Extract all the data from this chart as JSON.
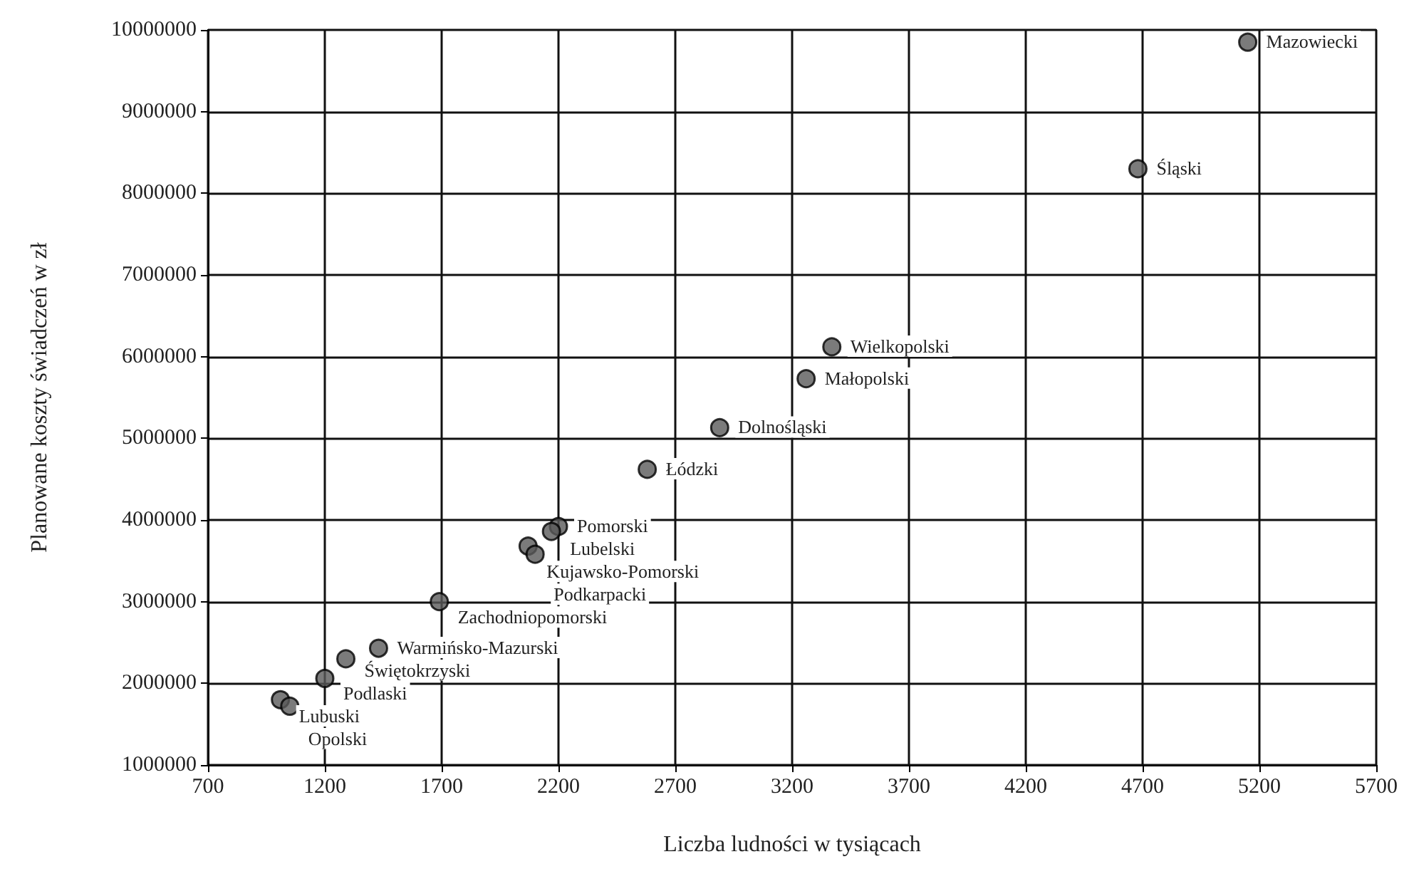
{
  "chart_data": {
    "type": "scatter",
    "xlabel": "Liczba ludności w tysiącach",
    "ylabel": "Planowane koszty świadczeń w zł",
    "x": [
      5150,
      4680,
      3370,
      3260,
      2890,
      2580,
      2200,
      2170,
      2070,
      2100,
      1690,
      1430,
      1290,
      1200,
      1010,
      1050
    ],
    "series": [
      {
        "color": "#5a5a5a",
        "values": [
          9850000,
          8300000,
          6120000,
          5730000,
          5130000,
          4620000,
          3920000,
          3860000,
          3680000,
          3580000,
          3000000,
          2430000,
          2300000,
          2060000,
          1800000,
          1720000
        ]
      }
    ],
    "annotations": [
      {
        "text": "Mazowiecki",
        "x": 5150,
        "y": 9850000
      },
      {
        "text": "Śląski",
        "x": 4680,
        "y": 8300000
      },
      {
        "text": "Wielkopolski",
        "x": 3370,
        "y": 6120000
      },
      {
        "text": "Małopolski",
        "x": 3260,
        "y": 5730000
      },
      {
        "text": "Dolnośląski",
        "x": 2890,
        "y": 5130000
      },
      {
        "text": "Łódzki",
        "x": 2580,
        "y": 4620000
      },
      {
        "text": "Pomorski",
        "x": 2200,
        "y": 3920000
      },
      {
        "text": "Lubelski",
        "x": 2170,
        "y": 3860000
      },
      {
        "text": "Kujawsko-Pomorski",
        "x": 2070,
        "y": 3680000
      },
      {
        "text": "Podkarpacki",
        "x": 2100,
        "y": 3580000
      },
      {
        "text": "Zachodniopomorski",
        "x": 1690,
        "y": 3000000
      },
      {
        "text": "Warmińsko-Mazurski",
        "x": 1430,
        "y": 2430000
      },
      {
        "text": "Świętokrzyski",
        "x": 1290,
        "y": 2300000
      },
      {
        "text": "Podlaski",
        "x": 1200,
        "y": 2060000
      },
      {
        "text": "Lubuski",
        "x": 1010,
        "y": 1800000
      },
      {
        "text": "Opolski",
        "x": 1050,
        "y": 1720000
      }
    ],
    "xlim": [
      700,
      5700
    ],
    "xticks": [
      700,
      1200,
      1700,
      2200,
      2700,
      3200,
      3700,
      4200,
      4700,
      5200,
      5700
    ],
    "ylim": [
      1000000,
      10000000
    ],
    "yticks": [
      1000000,
      2000000,
      3000000,
      4000000,
      5000000,
      6000000,
      7000000,
      8000000,
      9000000,
      10000000
    ],
    "grid": true,
    "marker": "circle"
  }
}
